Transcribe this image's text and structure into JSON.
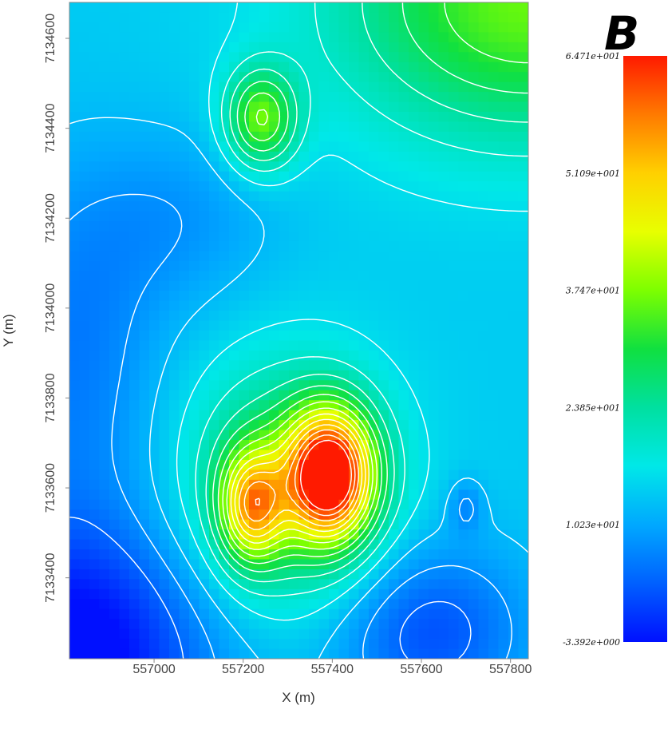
{
  "panel_label": "B",
  "chart_data": {
    "type": "heatmap",
    "xlabel": "X (m)",
    "ylabel": "Y (m)",
    "xlim": [
      556810,
      557840
    ],
    "ylim": [
      7133220,
      7134680
    ],
    "x_ticks": [
      557000,
      557200,
      557400,
      557600,
      557800
    ],
    "y_ticks": [
      7133400,
      7133600,
      7133800,
      7134000,
      7134200,
      7134400,
      7134600
    ],
    "colorbar": {
      "min": -3.392,
      "max": 64.71,
      "labels": [
        "6.471e+001",
        "5.109e+001",
        "3.747e+001",
        "2.385e+001",
        "1.023e+001",
        "-3.392e+000"
      ],
      "colors": [
        "#ff1a00",
        "#ff7a00",
        "#ffd000",
        "#e8ff00",
        "#7dff00",
        "#10e040",
        "#00e0a0",
        "#00e8e8",
        "#00a8ff",
        "#0060ff",
        "#0010ff"
      ]
    },
    "grid": false,
    "contour_color": "#ffffff",
    "peaks": [
      {
        "x": 557395,
        "y": 7133630,
        "value": 64.7
      },
      {
        "x": 557220,
        "y": 7133560,
        "value": 55.0
      },
      {
        "x": 557240,
        "y": 7134420,
        "value": 37.0
      },
      {
        "x": 557840,
        "y": 7134680,
        "value": 36.0
      },
      {
        "x": 557700,
        "y": 7133560,
        "value": 10.0
      }
    ],
    "lows": [
      {
        "x": 556810,
        "y": 7133220,
        "value": -3.4
      },
      {
        "x": 557600,
        "y": 7133250,
        "value": 2.0
      },
      {
        "x": 556810,
        "y": 7133850,
        "value": 5.0
      }
    ]
  }
}
